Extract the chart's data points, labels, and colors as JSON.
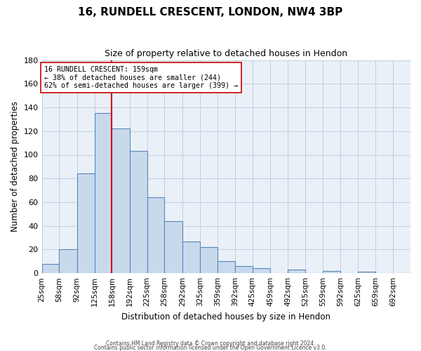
{
  "title": "16, RUNDELL CRESCENT, LONDON, NW4 3BP",
  "subtitle": "Size of property relative to detached houses in Hendon",
  "xlabel": "Distribution of detached houses by size in Hendon",
  "ylabel": "Number of detached properties",
  "bin_labels": [
    "25sqm",
    "58sqm",
    "92sqm",
    "125sqm",
    "158sqm",
    "192sqm",
    "225sqm",
    "258sqm",
    "292sqm",
    "325sqm",
    "359sqm",
    "392sqm",
    "425sqm",
    "459sqm",
    "492sqm",
    "525sqm",
    "559sqm",
    "592sqm",
    "625sqm",
    "659sqm",
    "692sqm"
  ],
  "bin_edges": [
    25,
    58,
    92,
    125,
    158,
    192,
    225,
    258,
    292,
    325,
    359,
    392,
    425,
    459,
    492,
    525,
    559,
    592,
    625,
    659,
    692,
    725
  ],
  "bar_heights": [
    8,
    20,
    84,
    135,
    122,
    103,
    64,
    44,
    27,
    22,
    10,
    6,
    4,
    0,
    3,
    0,
    2,
    0,
    1,
    0,
    0
  ],
  "bar_facecolor": "#c9d9ec",
  "bar_edgecolor": "#5588bb",
  "grid_color": "#c0c8d8",
  "background_color": "#eaf0f8",
  "vline_x": 158,
  "vline_color": "#cc0000",
  "annotation_title": "16 RUNDELL CRESCENT: 159sqm",
  "annotation_line1": "← 38% of detached houses are smaller (244)",
  "annotation_line2": "62% of semi-detached houses are larger (399) →",
  "annotation_box_facecolor": "#ffffff",
  "annotation_box_edgecolor": "#cc0000",
  "ylim": [
    0,
    180
  ],
  "yticks": [
    0,
    20,
    40,
    60,
    80,
    100,
    120,
    140,
    160,
    180
  ],
  "footer1": "Contains HM Land Registry data © Crown copyright and database right 2024.",
  "footer2": "Contains public sector information licensed under the Open Government Licence v3.0."
}
